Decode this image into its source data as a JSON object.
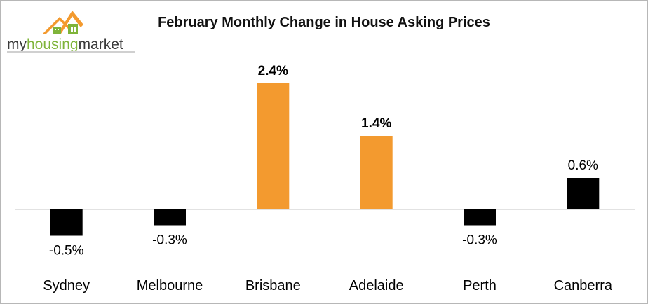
{
  "logo": {
    "brand_prefix": "my",
    "brand_middle": "housing",
    "brand_suffix": "market",
    "icon": "house-roofs-logo-icon",
    "colors": {
      "orange": "#f39a2f",
      "green": "#7fb43a",
      "dark": "#3a3a3a"
    }
  },
  "chart_data": {
    "type": "bar",
    "title": "February Monthly Change in House Asking Prices",
    "xlabel": "",
    "ylabel": "",
    "categories": [
      "Sydney",
      "Melbourne",
      "Brisbane",
      "Adelaide",
      "Perth",
      "Canberra"
    ],
    "values": [
      -0.5,
      -0.3,
      2.4,
      1.4,
      -0.3,
      0.6
    ],
    "data_labels": [
      "-0.5%",
      "-0.3%",
      "2.4%",
      "1.4%",
      "-0.3%",
      "0.6%"
    ],
    "bold_labels": [
      false,
      false,
      true,
      true,
      false,
      false
    ],
    "bar_colors": [
      "#000000",
      "#000000",
      "#f39a2f",
      "#f39a2f",
      "#000000",
      "#000000"
    ],
    "ylim": [
      -0.5,
      2.4
    ],
    "grid": false,
    "legend": "none"
  }
}
